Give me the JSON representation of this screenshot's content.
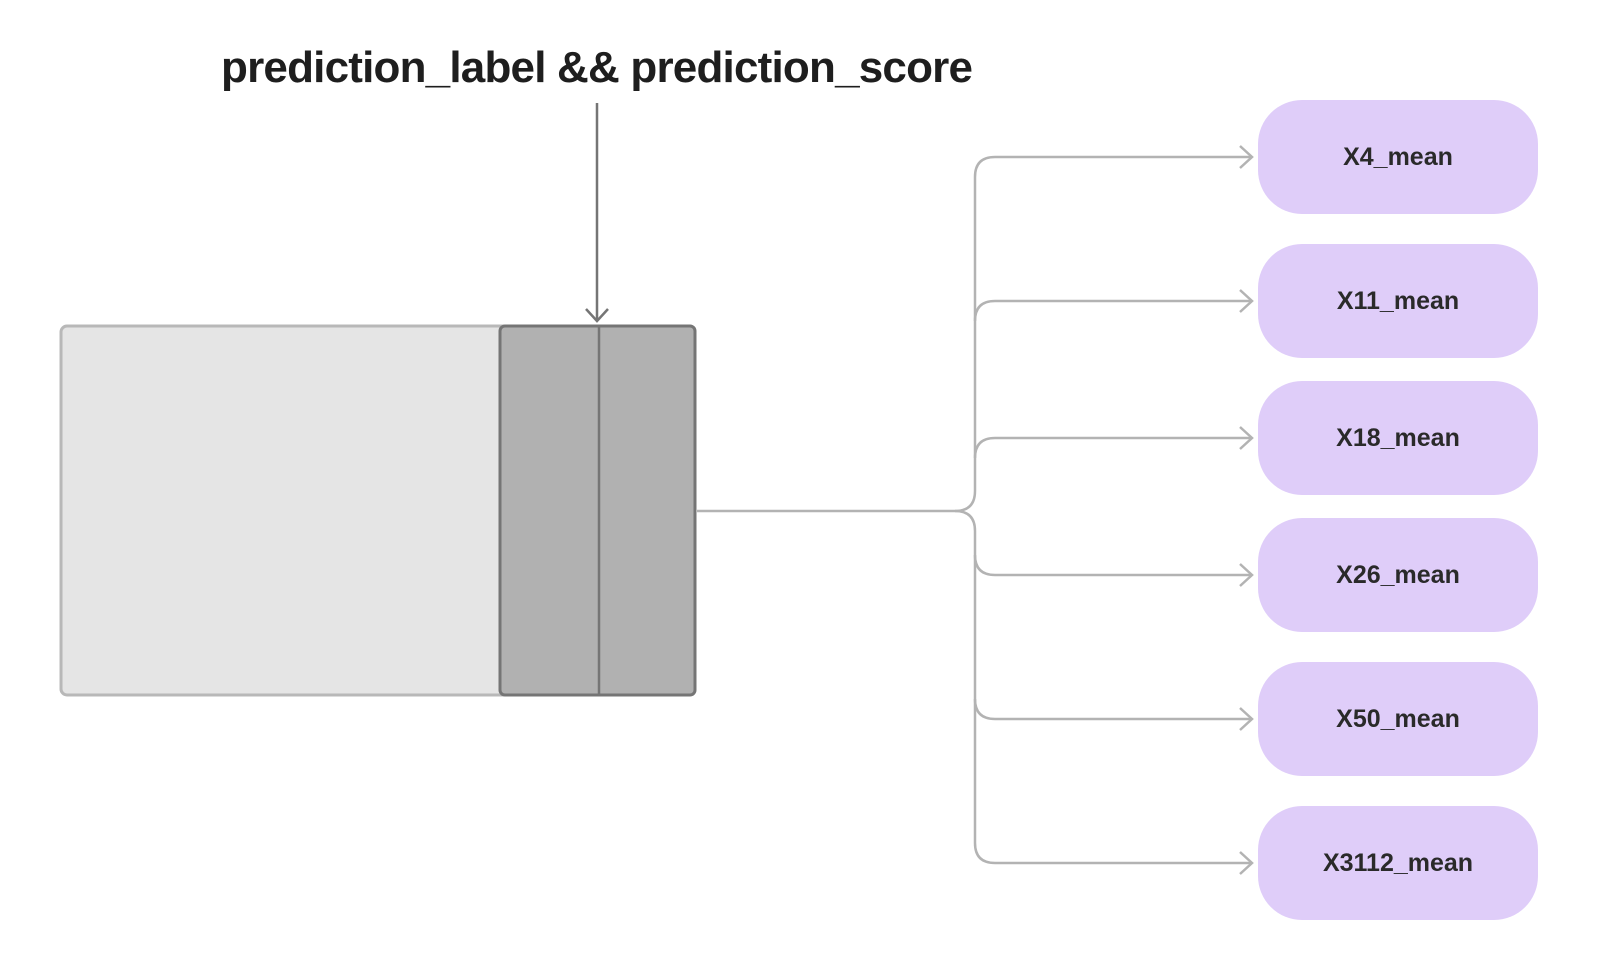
{
  "title": "prediction_label && prediction_score",
  "colors": {
    "node_fill": "#dfcdf9",
    "table_body": "#e5e5e5",
    "table_highlight": "#b1b1b1",
    "connector": "#b3b3b3",
    "arrow_dark": "#757575"
  },
  "nodes": [
    {
      "label": "X4_mean"
    },
    {
      "label": "X11_mean"
    },
    {
      "label": "X18_mean"
    },
    {
      "label": "X26_mean"
    },
    {
      "label": "X50_mean"
    },
    {
      "label": "X3112_mean"
    }
  ]
}
